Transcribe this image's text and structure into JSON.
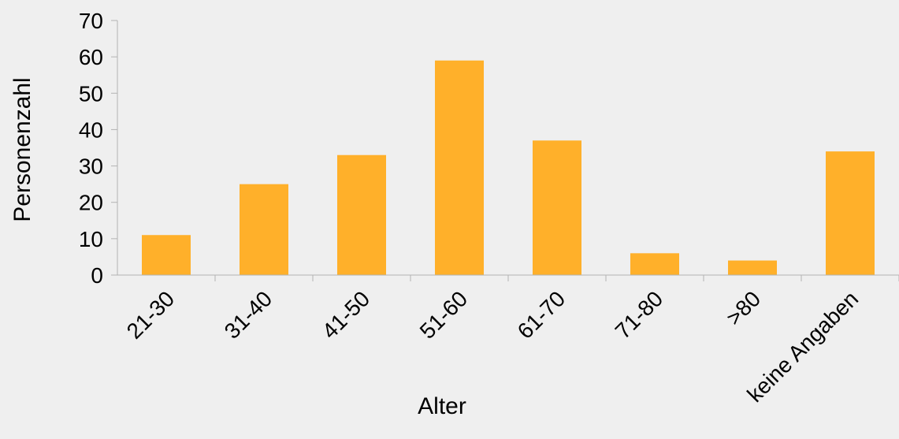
{
  "chart_data": {
    "type": "bar",
    "title": "",
    "xlabel": "Alter",
    "ylabel": "Personenzahl",
    "categories": [
      "21-30",
      "31-40",
      "41-50",
      "51-60",
      "61-70",
      "71-80",
      ">80",
      "keine Angaben"
    ],
    "values": [
      11,
      25,
      33,
      59,
      37,
      6,
      4,
      34
    ],
    "ylim": [
      0,
      70
    ],
    "yticks": [
      "0",
      "10",
      "20",
      "30",
      "40",
      "50",
      "60",
      "70"
    ],
    "grid": false,
    "legend": "none",
    "bar_color": "#ffb02a",
    "background_color": "#efefef",
    "axis_color": "#b3b3b3"
  }
}
